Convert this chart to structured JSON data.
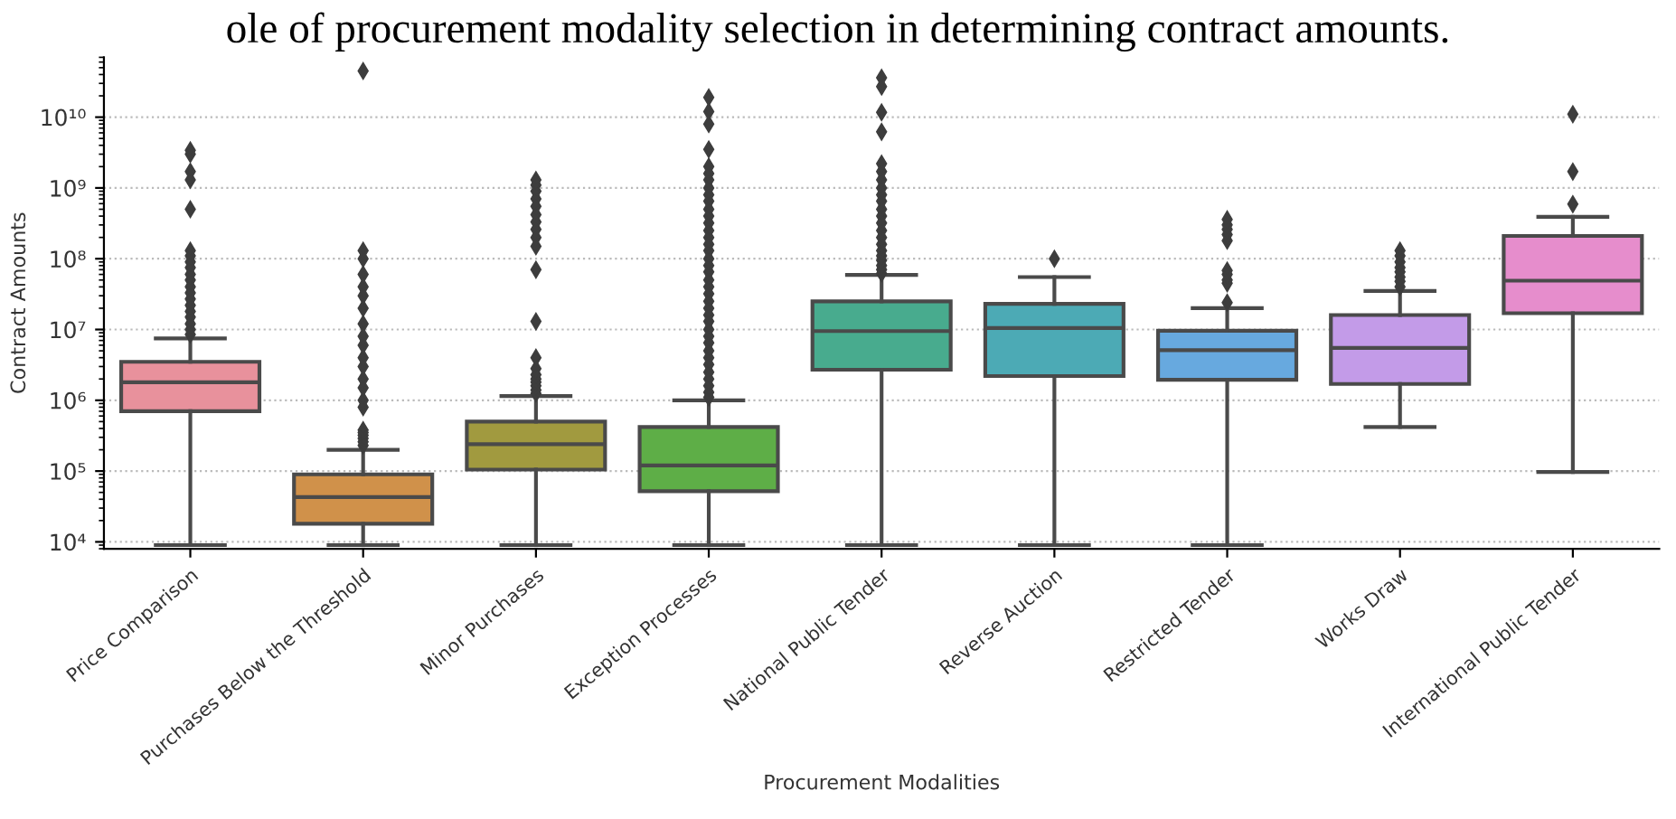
{
  "chart_data": {
    "type": "box",
    "title": "ole of procurement modality selection in determining contract amounts.",
    "xlabel": "Procurement Modalities",
    "ylabel": "Contract Amounts",
    "categories": [
      "Price Comparison",
      "Purchases Below the Threshold",
      "Minor Purchases",
      "Exception Processes",
      "National Public Tender",
      "Reverse Auction",
      "Restricted Tender",
      "Works Draw",
      "International Public Tender"
    ],
    "colors": [
      "#e8919c",
      "#d0914a",
      "#a19a3f",
      "#5eae47",
      "#48ab8e",
      "#4caab5",
      "#67a9df",
      "#c39be8",
      "#e68dcc"
    ],
    "boxes": [
      {
        "low": 9000,
        "q1": 700000,
        "median": 1800000,
        "q3": 3500000,
        "high": 7500000,
        "outliers": [
          8500000,
          10000000,
          12000000,
          15000000,
          18000000,
          22000000,
          27000000,
          33000000,
          40000000,
          50000000,
          60000000,
          75000000,
          90000000,
          110000000,
          130000000,
          500000000,
          1300000000,
          1700000000,
          3000000000,
          3400000000
        ]
      },
      {
        "low": 9000,
        "q1": 18000,
        "median": 43000,
        "q3": 90000,
        "high": 200000,
        "outliers": [
          230000,
          260000,
          290000,
          320000,
          350000,
          380000,
          800000,
          1000000,
          1500000,
          2000000,
          3000000,
          4000000,
          6000000,
          8000000,
          12000000,
          20000000,
          30000000,
          40000000,
          60000000,
          100000000,
          130000000,
          45000000000
        ]
      },
      {
        "low": 9000,
        "q1": 105000,
        "median": 240000,
        "q3": 500000,
        "high": 1150000,
        "outliers": [
          1250000,
          1400000,
          1600000,
          1800000,
          2000000,
          2300000,
          2800000,
          4000000,
          13000000,
          70000000,
          150000000,
          200000000,
          260000000,
          330000000,
          420000000,
          550000000,
          700000000,
          900000000,
          1100000000,
          1300000000
        ]
      },
      {
        "low": 9000,
        "q1": 52000,
        "median": 120000,
        "q3": 420000,
        "high": 1000000,
        "outliers": [
          1100000,
          1300000,
          1600000,
          2000000,
          2500000,
          3200000,
          4000000,
          5000000,
          6500000,
          8000000,
          10000000,
          13000000,
          16000000,
          20000000,
          25000000,
          32000000,
          40000000,
          50000000,
          65000000,
          80000000,
          100000000,
          130000000,
          160000000,
          200000000,
          250000000,
          320000000,
          400000000,
          500000000,
          650000000,
          800000000,
          1000000000,
          1300000000,
          1600000000,
          2000000000,
          3500000000,
          8000000000,
          12000000000,
          19000000000
        ]
      },
      {
        "low": 9000,
        "q1": 2700000,
        "median": 9500000,
        "q3": 25000000,
        "high": 59000000,
        "outliers": [
          62000000,
          70000000,
          80000000,
          95000000,
          110000000,
          130000000,
          160000000,
          200000000,
          250000000,
          320000000,
          400000000,
          500000000,
          650000000,
          800000000,
          1000000000,
          1300000000,
          1700000000,
          2200000000,
          6200000000,
          11700000000,
          27000000000,
          36000000000
        ]
      },
      {
        "low": 9000,
        "q1": 2200000,
        "median": 10500000,
        "q3": 23000000,
        "high": 55000000,
        "outliers": [
          100000000
        ]
      },
      {
        "low": 9000,
        "q1": 1950000,
        "median": 5100000,
        "q3": 9600000,
        "high": 20000000,
        "outliers": [
          24000000,
          45000000,
          50000000,
          60000000,
          68000000,
          180000000,
          220000000,
          260000000,
          300000000,
          360000000
        ]
      },
      {
        "low": 420000,
        "q1": 1700000,
        "median": 5500000,
        "q3": 16000000,
        "high": 35000000,
        "outliers": [
          40000000,
          48000000,
          55000000,
          65000000,
          75000000,
          90000000,
          110000000,
          130000000
        ]
      },
      {
        "low": 97000,
        "q1": 17000000,
        "median": 49000000,
        "q3": 210000000,
        "high": 390000000,
        "outliers": [
          590000000,
          1700000000,
          11000000000
        ]
      }
    ],
    "log": "y",
    "ylim": [
      8000,
      70000000000
    ],
    "yticks": [
      {
        "value": 10000,
        "label": "10⁴"
      },
      {
        "value": 100000,
        "label": "10⁵"
      },
      {
        "value": 1000000,
        "label": "10⁶"
      },
      {
        "value": 10000000,
        "label": "10⁷"
      },
      {
        "value": 100000000,
        "label": "10⁸"
      },
      {
        "value": 1000000000,
        "label": "10⁹"
      },
      {
        "value": 10000000000,
        "label": "10¹⁰"
      }
    ],
    "grid": "y",
    "marker": "diamond"
  }
}
